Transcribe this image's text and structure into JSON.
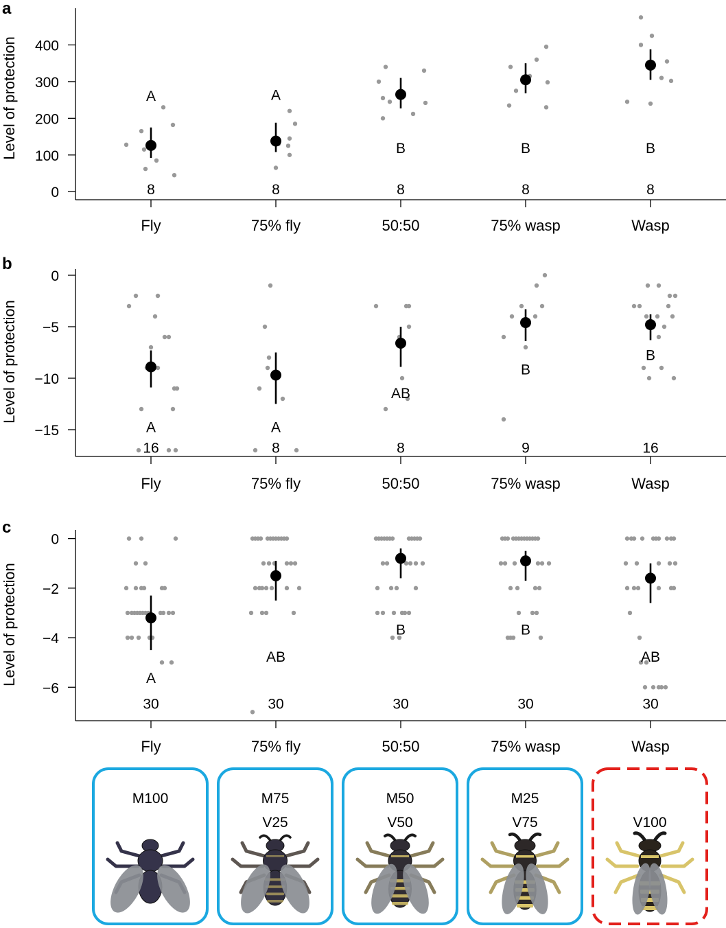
{
  "colors": {
    "points": "#999999",
    "mean": "#000000",
    "box_mimic": "#1ba8e0",
    "box_model": "#e3201b",
    "fly_body": "#35334a",
    "wasp_yellow": "#d8c46a",
    "wing": "#8a8d92"
  },
  "chart_data": [
    {
      "panel": "a",
      "type": "scatter",
      "ylabel": "Level of protection",
      "ylim": [
        -22,
        500
      ],
      "yticks": [
        0,
        100,
        200,
        300,
        400
      ],
      "ytick_labels": [
        "0",
        "100",
        "200",
        "300",
        "400"
      ],
      "categories": [
        "Fly",
        "75% fly",
        "50:50",
        "75% wasp",
        "Wasp"
      ],
      "means": [
        126,
        138,
        265,
        305,
        345
      ],
      "ci_low": [
        92,
        108,
        227,
        268,
        305
      ],
      "ci_high": [
        175,
        188,
        310,
        350,
        388
      ],
      "letters": [
        "A",
        "A",
        "B",
        "B",
        "B"
      ],
      "letter_y": [
        262,
        265,
        120,
        120,
        120
      ],
      "n": [
        "8",
        "8",
        "8",
        "8",
        "8"
      ],
      "n_y": [
        8,
        8,
        8,
        8,
        8
      ],
      "points": [
        [
          [
            -36,
            128
          ],
          [
            -14,
            165
          ],
          [
            -10,
            115
          ],
          [
            -8,
            62
          ],
          [
            8,
            85
          ],
          [
            18,
            230
          ],
          [
            32,
            182
          ],
          [
            34,
            45
          ]
        ],
        [
          [
            0,
            65
          ],
          [
            18,
            125
          ],
          [
            20,
            100
          ],
          [
            20,
            145
          ],
          [
            20,
            220
          ],
          [
            28,
            185
          ],
          [
            -2,
            140
          ],
          [
            4,
            130
          ]
        ],
        [
          [
            -32,
            300
          ],
          [
            -26,
            255
          ],
          [
            -26,
            200
          ],
          [
            -22,
            340
          ],
          [
            -16,
            245
          ],
          [
            18,
            212
          ],
          [
            34,
            330
          ],
          [
            36,
            242
          ]
        ],
        [
          [
            -24,
            235
          ],
          [
            -22,
            340
          ],
          [
            -14,
            275
          ],
          [
            6,
            315
          ],
          [
            16,
            360
          ],
          [
            30,
            395
          ],
          [
            30,
            230
          ],
          [
            32,
            298
          ]
        ],
        [
          [
            -34,
            245
          ],
          [
            -14,
            400
          ],
          [
            -14,
            475
          ],
          [
            0,
            240
          ],
          [
            2,
            425
          ],
          [
            16,
            310
          ],
          [
            24,
            355
          ],
          [
            30,
            302
          ]
        ]
      ]
    },
    {
      "panel": "b",
      "type": "scatter",
      "ylabel": "Level of protection",
      "ylim": [
        -17.6,
        0.6
      ],
      "yticks": [
        0,
        -5,
        -10,
        -15
      ],
      "ytick_labels": [
        "0",
        "−5",
        "−10",
        "−15"
      ],
      "categories": [
        "Fly",
        "75% fly",
        "50:50",
        "75% wasp",
        "Wasp"
      ],
      "means": [
        -8.9,
        -9.7,
        -6.6,
        -4.6,
        -4.8
      ],
      "ci_low": [
        -10.9,
        -12.5,
        -8.9,
        -6.4,
        -6.3
      ],
      "ci_high": [
        -7.3,
        -7.5,
        -5.0,
        -3.3,
        -3.8
      ],
      "letters": [
        "A",
        "A",
        "AB",
        "B",
        "B"
      ],
      "letter_y": [
        -14.7,
        -14.7,
        -11.4,
        -9.1,
        -7.7
      ],
      "n": [
        "16",
        "8",
        "8",
        "9",
        "16"
      ],
      "n_y": [
        -16.7,
        -16.7,
        -16.7,
        -16.7,
        -16.7
      ],
      "points": [
        [
          [
            -32,
            -3
          ],
          [
            -22,
            -2
          ],
          [
            -18,
            -17
          ],
          [
            -14,
            -13
          ],
          [
            0,
            -7
          ],
          [
            6,
            -4
          ],
          [
            10,
            -2
          ],
          [
            10,
            -9
          ],
          [
            20,
            -6
          ],
          [
            26,
            -6
          ],
          [
            26,
            -17
          ],
          [
            32,
            -13
          ],
          [
            34,
            -11
          ],
          [
            36,
            -17
          ],
          [
            38,
            -11
          ],
          [
            -6,
            -9
          ]
        ],
        [
          [
            -24,
            -11
          ],
          [
            -30,
            -17
          ],
          [
            -16,
            -5
          ],
          [
            -12,
            -9
          ],
          [
            -10,
            -8
          ],
          [
            -8,
            -1
          ],
          [
            10,
            -12
          ],
          [
            30,
            -17
          ]
        ],
        [
          [
            -36,
            -3
          ],
          [
            -22,
            -13
          ],
          [
            2,
            -10
          ],
          [
            8,
            -3
          ],
          [
            10,
            -12
          ],
          [
            12,
            -3
          ],
          [
            12,
            -5
          ],
          [
            -2,
            -6
          ]
        ],
        [
          [
            -32,
            -14
          ],
          [
            -32,
            -6
          ],
          [
            -20,
            -4
          ],
          [
            -6,
            -3
          ],
          [
            0,
            -7
          ],
          [
            14,
            -4
          ],
          [
            16,
            -1
          ],
          [
            24,
            -3
          ],
          [
            28,
            0
          ]
        ],
        [
          [
            -24,
            -3
          ],
          [
            -16,
            -3
          ],
          [
            -10,
            -9
          ],
          [
            -2,
            -10
          ],
          [
            -6,
            -4
          ],
          [
            -4,
            -1
          ],
          [
            10,
            -4
          ],
          [
            12,
            -6
          ],
          [
            12,
            -1
          ],
          [
            16,
            -9
          ],
          [
            20,
            -5
          ],
          [
            26,
            -3
          ],
          [
            28,
            -2
          ],
          [
            32,
            -4
          ],
          [
            34,
            -10
          ],
          [
            36,
            -2
          ]
        ]
      ]
    },
    {
      "panel": "c",
      "type": "scatter",
      "ylabel": "Level of protection",
      "ylim": [
        -7.35,
        0.35
      ],
      "yticks": [
        0,
        -2,
        -4,
        -6
      ],
      "ytick_labels": [
        "0",
        "−2",
        "−4",
        "−6"
      ],
      "categories": [
        "Fly",
        "75% fly",
        "50:50",
        "75% wasp",
        "Wasp"
      ],
      "means": [
        -3.2,
        -1.5,
        -0.8,
        -0.9,
        -1.6
      ],
      "ci_low": [
        -4.5,
        -2.5,
        -1.6,
        -1.7,
        -2.6
      ],
      "ci_high": [
        -2.3,
        -0.9,
        -0.4,
        -0.5,
        -1.0
      ],
      "letters": [
        "A",
        "AB",
        "B",
        "B",
        "AB"
      ],
      "letter_y": [
        -5.6,
        -4.75,
        -3.65,
        -3.65,
        -4.75
      ],
      "n": [
        "30",
        "30",
        "30",
        "30",
        "30"
      ],
      "n_y": [
        -6.65,
        -6.65,
        -6.65,
        -6.65,
        -6.65
      ],
      "points": [
        [
          [
            -32,
            0
          ],
          [
            -14,
            0
          ],
          [
            36,
            0
          ],
          [
            -22,
            -1
          ],
          [
            -8,
            -1
          ],
          [
            -36,
            -2
          ],
          [
            -22,
            -2
          ],
          [
            -14,
            -2
          ],
          [
            -10,
            -2
          ],
          [
            16,
            -2
          ],
          [
            20,
            -2
          ],
          [
            -34,
            -3
          ],
          [
            -28,
            -3
          ],
          [
            -24,
            -3
          ],
          [
            -20,
            -3
          ],
          [
            -16,
            -3
          ],
          [
            -12,
            -3
          ],
          [
            -8,
            -3
          ],
          [
            -4,
            -3
          ],
          [
            14,
            -3
          ],
          [
            18,
            -3
          ],
          [
            32,
            -3
          ],
          [
            -34,
            -4
          ],
          [
            -28,
            -4
          ],
          [
            -18,
            -4
          ],
          [
            -2,
            -4
          ],
          [
            2,
            -4
          ],
          [
            16,
            -5
          ],
          [
            30,
            -5
          ],
          [
            26,
            -3
          ]
        ],
        [
          [
            -34,
            0
          ],
          [
            -30,
            0
          ],
          [
            -26,
            0
          ],
          [
            -22,
            0
          ],
          [
            -12,
            0
          ],
          [
            -8,
            0
          ],
          [
            -4,
            0
          ],
          [
            0,
            0
          ],
          [
            4,
            0
          ],
          [
            8,
            0
          ],
          [
            12,
            0
          ],
          [
            16,
            0
          ],
          [
            -18,
            -1
          ],
          [
            -10,
            -1
          ],
          [
            -2,
            -1
          ],
          [
            16,
            -1
          ],
          [
            22,
            -1
          ],
          [
            28,
            -1
          ],
          [
            -30,
            -2
          ],
          [
            -24,
            -2
          ],
          [
            -20,
            -2
          ],
          [
            -14,
            -2
          ],
          [
            -6,
            -2
          ],
          [
            16,
            -2
          ],
          [
            34,
            -2
          ],
          [
            -36,
            -3
          ],
          [
            -20,
            -3
          ],
          [
            -14,
            -3
          ],
          [
            26,
            -3
          ],
          [
            -34,
            -7
          ]
        ],
        [
          [
            -36,
            0
          ],
          [
            -32,
            0
          ],
          [
            -28,
            0
          ],
          [
            -24,
            0
          ],
          [
            -20,
            0
          ],
          [
            -16,
            0
          ],
          [
            -12,
            0
          ],
          [
            12,
            0
          ],
          [
            16,
            0
          ],
          [
            20,
            0
          ],
          [
            24,
            0
          ],
          [
            28,
            0
          ],
          [
            -26,
            -1
          ],
          [
            -20,
            -1
          ],
          [
            8,
            -1
          ],
          [
            14,
            -1
          ],
          [
            22,
            -1
          ],
          [
            32,
            -1
          ],
          [
            -34,
            -2
          ],
          [
            -14,
            -2
          ],
          [
            -6,
            -2
          ],
          [
            22,
            -2
          ],
          [
            -34,
            -3
          ],
          [
            -26,
            -3
          ],
          [
            -10,
            -3
          ],
          [
            6,
            -3
          ],
          [
            12,
            -3
          ],
          [
            -12,
            -4
          ],
          [
            -2,
            -4
          ],
          [
            2,
            -3
          ]
        ],
        [
          [
            -34,
            0
          ],
          [
            -30,
            0
          ],
          [
            -26,
            0
          ],
          [
            -18,
            0
          ],
          [
            -14,
            0
          ],
          [
            -10,
            0
          ],
          [
            -6,
            0
          ],
          [
            -2,
            0
          ],
          [
            2,
            0
          ],
          [
            6,
            0
          ],
          [
            10,
            0
          ],
          [
            14,
            0
          ],
          [
            18,
            0
          ],
          [
            -30,
            -1
          ],
          [
            -16,
            -1
          ],
          [
            18,
            -1
          ],
          [
            24,
            -1
          ],
          [
            34,
            -1
          ],
          [
            -22,
            -2
          ],
          [
            -12,
            -2
          ],
          [
            14,
            -2
          ],
          [
            20,
            -2
          ],
          [
            -10,
            -3
          ],
          [
            10,
            -3
          ],
          [
            16,
            -3
          ],
          [
            -26,
            -4
          ],
          [
            -22,
            -4
          ],
          [
            -18,
            -4
          ],
          [
            22,
            -4
          ],
          [
            -36,
            -1
          ]
        ],
        [
          [
            -34,
            0
          ],
          [
            -28,
            0
          ],
          [
            -24,
            0
          ],
          [
            -12,
            0
          ],
          [
            4,
            0
          ],
          [
            8,
            0
          ],
          [
            12,
            0
          ],
          [
            24,
            0
          ],
          [
            30,
            0
          ],
          [
            34,
            0
          ],
          [
            -36,
            -1
          ],
          [
            -20,
            -1
          ],
          [
            12,
            -1
          ],
          [
            28,
            -1
          ],
          [
            36,
            -1
          ],
          [
            -34,
            -2
          ],
          [
            -24,
            -2
          ],
          [
            -18,
            -2
          ],
          [
            12,
            -2
          ],
          [
            30,
            -2
          ],
          [
            34,
            -2
          ],
          [
            -30,
            -3
          ],
          [
            -16,
            -4
          ],
          [
            -14,
            -5
          ],
          [
            -8,
            -6
          ],
          [
            4,
            -6
          ],
          [
            12,
            -6
          ],
          [
            16,
            -6
          ],
          [
            22,
            -6
          ],
          [
            -6,
            -5
          ]
        ]
      ]
    }
  ],
  "panel_letters": [
    "a",
    "b",
    "c"
  ],
  "boxes": [
    {
      "line1": "M100",
      "line2": "",
      "style": "mimic",
      "wasp": 0.0
    },
    {
      "line1": "M75",
      "line2": "V25",
      "style": "mimic",
      "wasp": 0.25
    },
    {
      "line1": "M50",
      "line2": "V50",
      "style": "mimic",
      "wasp": 0.5
    },
    {
      "line1": "M25",
      "line2": "V75",
      "style": "mimic",
      "wasp": 0.75
    },
    {
      "line1": "",
      "line2": "V100",
      "style": "model",
      "wasp": 1.0
    }
  ]
}
